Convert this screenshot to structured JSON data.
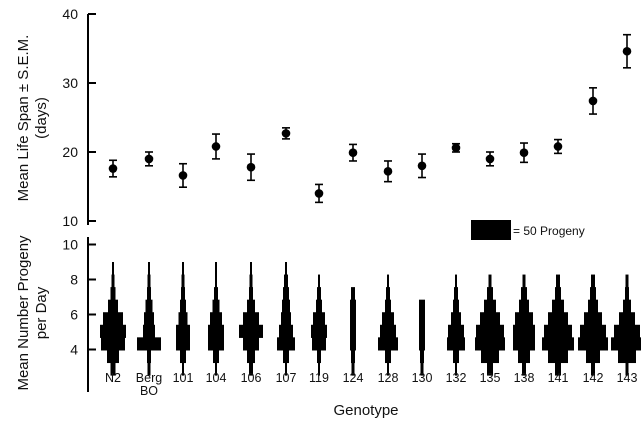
{
  "chart_data": [
    {
      "type": "scatter",
      "ylabel_line1": "Mean Life Span ± S.E.M.",
      "ylabel_line2": "(days)",
      "ylim": [
        10,
        40
      ],
      "yticks": [
        10,
        20,
        30,
        40
      ],
      "categories": [
        "N2",
        "Berg BO",
        "101",
        "104",
        "106",
        "107",
        "119",
        "124",
        "128",
        "130",
        "132",
        "135",
        "138",
        "141",
        "142",
        "143"
      ],
      "mean": [
        17.6,
        19.0,
        16.6,
        20.8,
        17.8,
        22.7,
        14.0,
        19.9,
        17.2,
        18.0,
        20.6,
        19.0,
        19.9,
        20.8,
        27.4,
        34.6
      ],
      "sem": [
        1.2,
        1.0,
        1.7,
        1.8,
        1.9,
        0.8,
        1.3,
        1.2,
        1.5,
        1.7,
        0.6,
        1.0,
        1.4,
        1.0,
        1.9,
        2.4
      ]
    },
    {
      "type": "kite",
      "ylabel_line1": "Mean Number Progeny",
      "ylabel_line2": "per Day",
      "ylim": [
        2,
        10.5
      ],
      "yticks": [
        4,
        6,
        8,
        10
      ],
      "legend": "= 50 Progeny",
      "xlabel": "Genotype",
      "categories": [
        "N2",
        "Berg BO",
        "101",
        "104",
        "106",
        "107",
        "119",
        "124",
        "128",
        "130",
        "132",
        "135",
        "138",
        "141",
        "142",
        "143"
      ],
      "category_lines": [
        [
          "N2"
        ],
        [
          "Berg",
          "BO"
        ],
        [
          "101"
        ],
        [
          "104"
        ],
        [
          "106"
        ],
        [
          "107"
        ],
        [
          "119"
        ],
        [
          "124"
        ],
        [
          "128"
        ],
        [
          "130"
        ],
        [
          "132"
        ],
        [
          "135"
        ],
        [
          "138"
        ],
        [
          "141"
        ],
        [
          "142"
        ],
        [
          "143"
        ]
      ],
      "progeny_widths_by_day": [
        [
          5,
          12,
          24,
          26,
          20,
          10,
          5,
          3,
          2
        ],
        [
          3,
          4,
          24,
          12,
          10,
          7,
          4,
          3,
          2
        ],
        [
          2,
          6,
          14,
          14,
          9,
          6,
          4,
          3,
          2
        ],
        [
          2,
          6,
          16,
          16,
          12,
          7,
          4,
          2,
          2
        ],
        [
          4,
          8,
          16,
          24,
          16,
          8,
          4,
          3,
          2
        ],
        [
          2,
          6,
          18,
          14,
          10,
          8,
          6,
          4,
          2
        ],
        [
          2,
          4,
          14,
          16,
          12,
          6,
          4,
          2,
          0
        ],
        [
          3,
          4,
          6,
          6,
          6,
          6,
          4,
          0,
          0
        ],
        [
          2,
          6,
          20,
          16,
          12,
          6,
          4,
          2,
          0
        ],
        [
          3,
          4,
          6,
          6,
          6,
          6,
          0,
          0,
          0
        ],
        [
          2,
          6,
          18,
          16,
          10,
          6,
          4,
          2,
          0
        ],
        [
          6,
          18,
          30,
          28,
          20,
          12,
          6,
          3,
          0
        ],
        [
          4,
          12,
          22,
          22,
          18,
          10,
          6,
          3,
          0
        ],
        [
          6,
          20,
          32,
          28,
          20,
          12,
          6,
          4,
          0
        ],
        [
          4,
          14,
          30,
          26,
          18,
          10,
          6,
          4,
          0
        ],
        [
          3,
          18,
          32,
          26,
          16,
          8,
          4,
          3,
          0
        ]
      ]
    }
  ]
}
